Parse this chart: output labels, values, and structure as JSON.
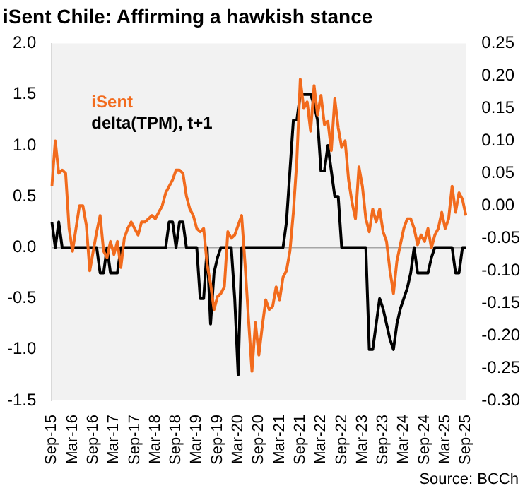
{
  "chart_data": {
    "type": "line",
    "title": "iSent Chile: Affirming a hawkish stance",
    "annotations": [
      "Source: BCCh"
    ],
    "categories": [
      "Sep-15",
      null,
      null,
      null,
      null,
      null,
      "Mar-16",
      null,
      null,
      null,
      null,
      null,
      "Sep-16",
      null,
      null,
      null,
      null,
      null,
      "Mar-17",
      null,
      null,
      null,
      null,
      null,
      "Sep-17",
      null,
      null,
      null,
      null,
      null,
      "Mar-18",
      null,
      null,
      null,
      null,
      null,
      "Sep-18",
      null,
      null,
      null,
      null,
      null,
      "Mar-19",
      null,
      null,
      null,
      null,
      null,
      "Sep-19",
      null,
      null,
      null,
      null,
      null,
      "Mar-20",
      null,
      null,
      null,
      null,
      null,
      "Sep-20",
      null,
      null,
      null,
      null,
      null,
      "Mar-21",
      null,
      null,
      null,
      null,
      null,
      "Sep-21",
      null,
      null,
      null,
      null,
      null,
      "Mar-22",
      null,
      null,
      null,
      null,
      null,
      "Sep-22",
      null,
      null,
      null,
      null,
      null,
      "Mar-23",
      null,
      null,
      null,
      null,
      null,
      "Sep-23",
      null,
      null,
      null,
      null,
      null,
      "Mar-24",
      null,
      null,
      null,
      null,
      null,
      "Sep-24",
      null,
      null,
      null,
      null,
      null,
      "Mar-25",
      null,
      null,
      null,
      null,
      null,
      "Sep-25"
    ],
    "series": [
      {
        "name": "iSent",
        "color": "#f26b1d",
        "axis": "y2",
        "values": [
          0.03,
          0.1,
          0.05,
          0.055,
          0.05,
          -0.035,
          -0.07,
          -0.035,
          0.0,
          0.0,
          -0.03,
          -0.1,
          -0.07,
          -0.04,
          -0.015,
          -0.07,
          -0.08,
          -0.055,
          -0.075,
          -0.055,
          -0.095,
          -0.05,
          -0.035,
          -0.025,
          -0.035,
          -0.045,
          -0.025,
          -0.025,
          -0.02,
          -0.015,
          -0.02,
          -0.01,
          0.0,
          0.02,
          0.03,
          0.04,
          0.055,
          0.055,
          0.05,
          0.015,
          -0.005,
          -0.015,
          -0.035,
          -0.04,
          -0.035,
          -0.09,
          -0.12,
          -0.16,
          -0.14,
          -0.135,
          -0.125,
          -0.04,
          -0.05,
          -0.045,
          -0.03,
          -0.015,
          -0.09,
          -0.175,
          -0.255,
          -0.18,
          -0.23,
          -0.185,
          -0.145,
          -0.16,
          -0.155,
          -0.125,
          -0.145,
          -0.11,
          -0.1,
          -0.07,
          -0.01,
          0.07,
          0.195,
          0.15,
          0.16,
          0.115,
          0.185,
          0.14,
          0.17,
          0.125,
          0.13,
          0.085,
          0.165,
          0.12,
          0.09,
          0.1,
          0.04,
          0.005,
          -0.02,
          0.06,
          0.03,
          -0.02,
          -0.04,
          -0.005,
          -0.025,
          -0.005,
          -0.04,
          -0.055,
          -0.1,
          -0.135,
          -0.085,
          -0.06,
          -0.035,
          -0.02,
          -0.02,
          -0.035,
          -0.06,
          -0.045,
          -0.055,
          -0.035,
          -0.065,
          -0.045,
          -0.035,
          -0.01,
          -0.035,
          -0.02,
          0.03,
          -0.01,
          0.02,
          0.01,
          -0.015
        ]
      },
      {
        "name": "delta(TPM), t+1",
        "color": "#000000",
        "values": [
          0.25,
          0,
          0.25,
          0,
          0,
          0,
          0,
          0,
          0,
          0,
          0,
          0,
          0,
          0,
          -0.25,
          -0.25,
          0,
          -0.25,
          -0.25,
          -0.25,
          0,
          0,
          0,
          0,
          0,
          0,
          0,
          0,
          0,
          0,
          0,
          0,
          0,
          0,
          0.25,
          0.25,
          0,
          0.25,
          0.25,
          0,
          0,
          0,
          0,
          -0.5,
          -0.5,
          0,
          -0.75,
          -0.25,
          -0.1,
          0,
          0,
          0,
          0,
          -0.5,
          -1.25,
          0,
          0,
          0,
          0,
          0,
          0,
          0,
          0,
          0,
          0,
          0,
          0,
          0,
          0.25,
          0.75,
          1.25,
          1.25,
          1.5,
          1.5,
          1.5,
          1.5,
          1.4,
          1.25,
          0.75,
          0.75,
          1.0,
          0.75,
          0.5,
          0.5,
          0,
          0,
          0,
          0,
          0,
          0,
          0,
          0,
          -1.0,
          -1.0,
          -0.75,
          -0.5,
          -0.6,
          -0.75,
          -0.9,
          -1.0,
          -0.75,
          -0.6,
          -0.5,
          -0.4,
          -0.25,
          0,
          -0.25,
          -0.25,
          -0.25,
          -0.25,
          -0.1,
          0,
          0,
          0,
          0,
          0,
          0,
          -0.25,
          -0.25,
          0,
          0
        ]
      }
    ],
    "ylim": [
      -1.5,
      2.0
    ],
    "yticks": [
      {
        "value": -1.5,
        "label": "-1.5"
      },
      {
        "value": -1.0,
        "label": "-1.0"
      },
      {
        "value": -0.5,
        "label": "-0.5"
      },
      {
        "value": 0,
        "label": "0.0"
      },
      {
        "value": 0.5,
        "label": "0.5"
      },
      {
        "value": 1.0,
        "label": "1.0"
      },
      {
        "value": 1.5,
        "label": "1.5"
      },
      {
        "value": 2.0,
        "label": "2.0"
      }
    ],
    "y2lim": [
      -0.3,
      0.25
    ],
    "y2ticks": [
      {
        "value": -0.3,
        "label": "-0.30"
      },
      {
        "value": -0.25,
        "label": "-0.25"
      },
      {
        "value": -0.2,
        "label": "-0.20"
      },
      {
        "value": -0.15,
        "label": "-0.15"
      },
      {
        "value": -0.1,
        "label": "-0.10"
      },
      {
        "value": -0.05,
        "label": "-0.05"
      },
      {
        "value": 0,
        "label": "0.00"
      },
      {
        "value": 0.05,
        "label": "0.05"
      },
      {
        "value": 0.1,
        "label": "0.10"
      },
      {
        "value": 0.15,
        "label": "0.15"
      },
      {
        "value": 0.2,
        "label": "0.20"
      },
      {
        "value": 0.25,
        "label": "0.25"
      }
    ],
    "ref_lines": [
      {
        "axis": "y",
        "value": 0,
        "color": "#a6a6a6"
      }
    ],
    "legend": "top left",
    "grid": false,
    "marker": "none",
    "line_style": "solid"
  }
}
